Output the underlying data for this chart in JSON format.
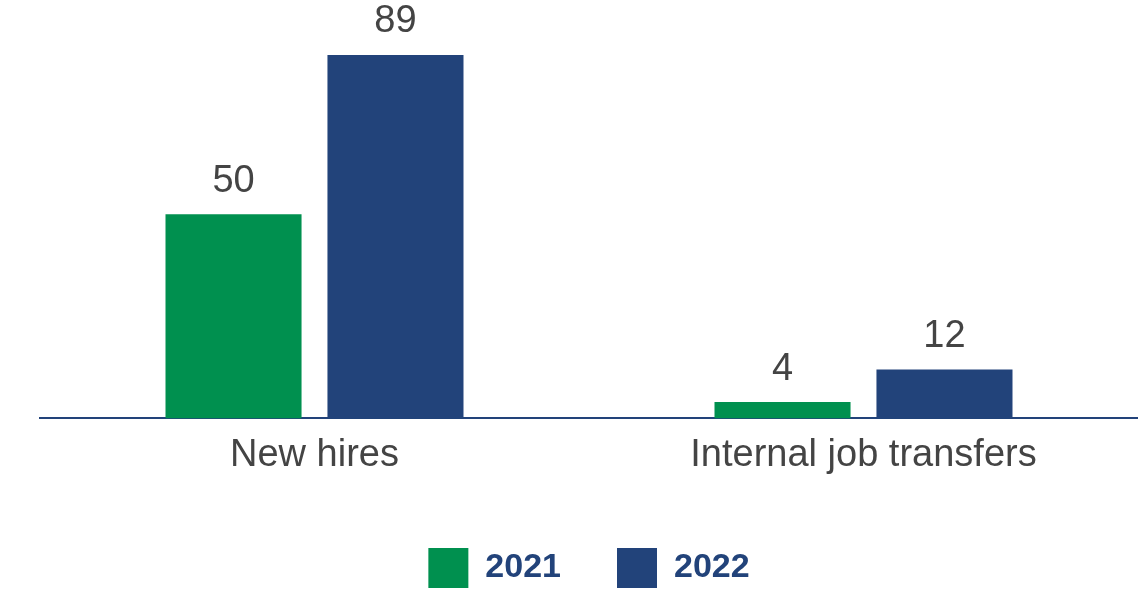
{
  "chart_data": {
    "type": "bar",
    "categories": [
      "New hires",
      "Internal job transfers"
    ],
    "series": [
      {
        "name": "2021",
        "color": "#00904f",
        "values": [
          50,
          4
        ]
      },
      {
        "name": "2022",
        "color": "#22437a",
        "values": [
          89,
          12
        ]
      }
    ],
    "data_labels": true,
    "legend": "bottom",
    "grid": false
  }
}
